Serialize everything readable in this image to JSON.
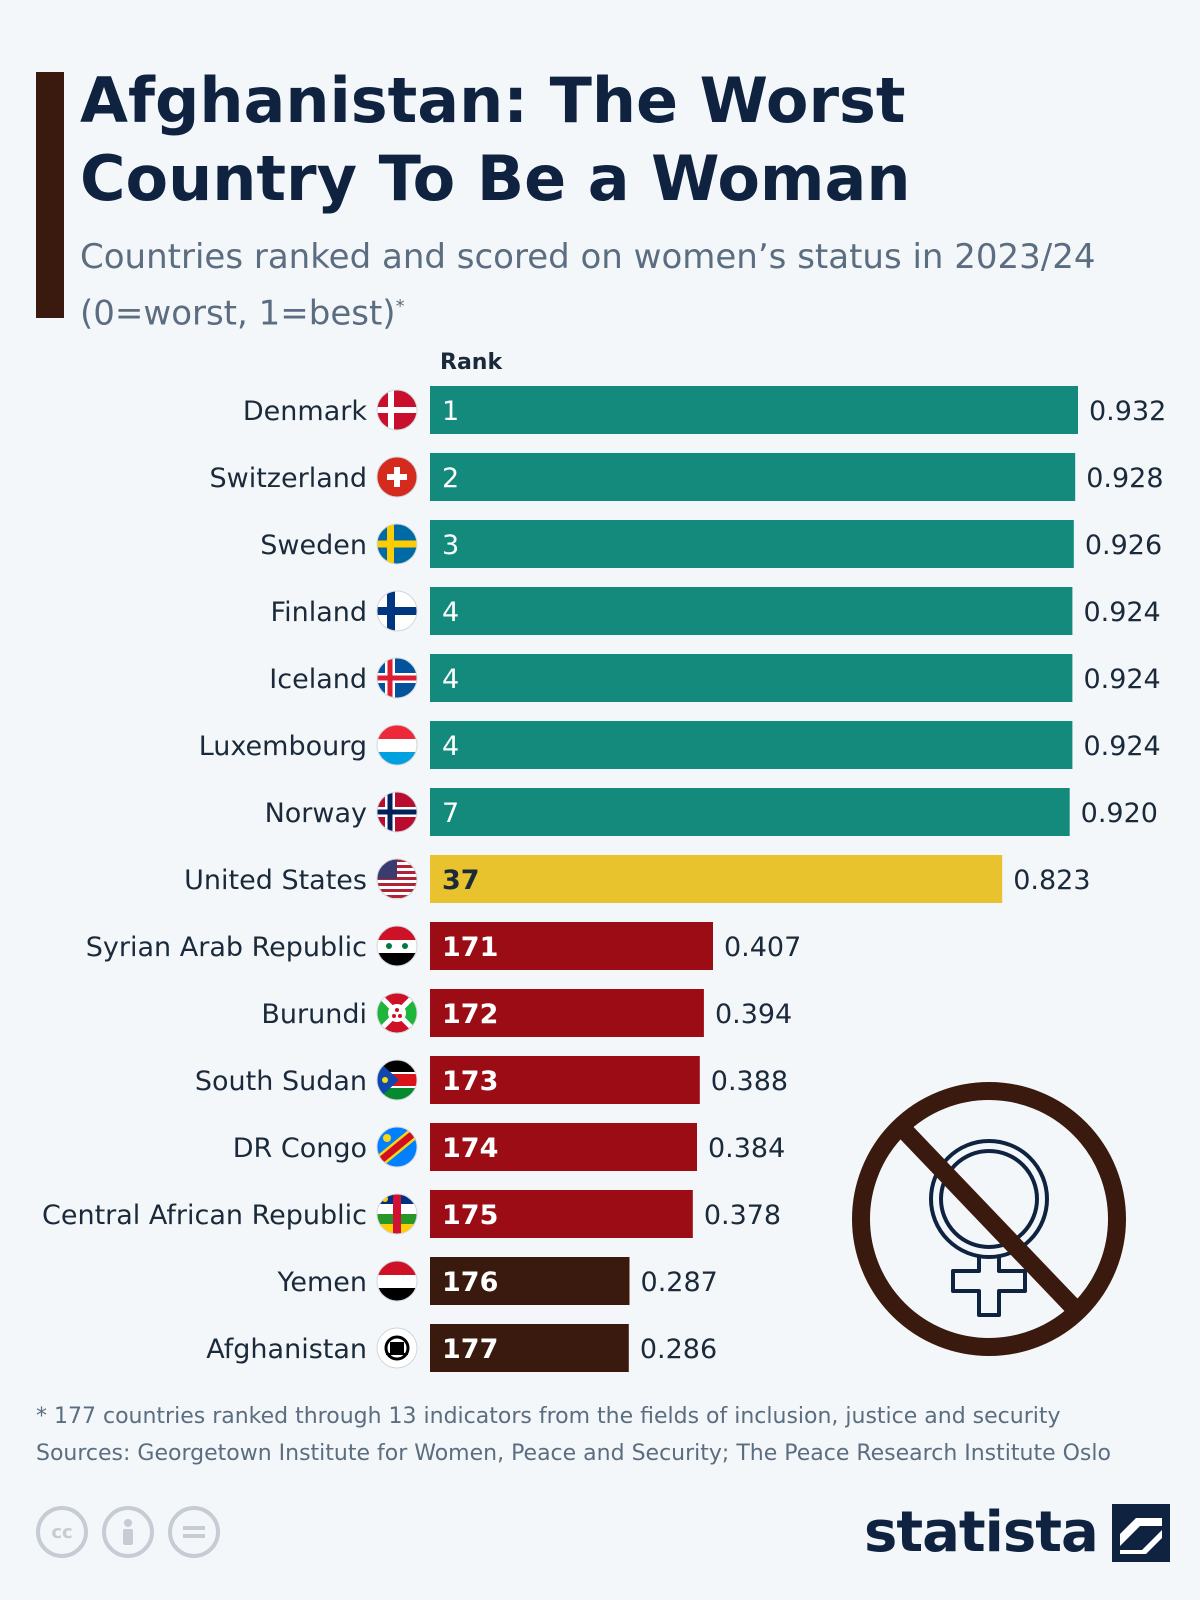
{
  "header": {
    "title": "Afghanistan: The Worst Country To Be a Woman",
    "subtitle": "Countries ranked and scored on women’s status in 2023/24 (0=worst, 1=best)",
    "subtitle_marker": "*"
  },
  "chart_data": {
    "type": "bar",
    "orientation": "horizontal",
    "title": "Afghanistan: The Worst Country To Be a Woman",
    "subtitle": "Countries ranked and scored on women’s status in 2023/24 (0=worst, 1=best)",
    "rank_header": "Rank",
    "xlim": [
      0,
      0.932
    ],
    "grid": false,
    "categories": [
      "Denmark",
      "Switzerland",
      "Sweden",
      "Finland",
      "Iceland",
      "Luxembourg",
      "Norway",
      "United States",
      "Syrian Arab Republic",
      "Burundi",
      "South Sudan",
      "DR Congo",
      "Central African Republic",
      "Yemen",
      "Afghanistan"
    ],
    "ranks": [
      "1",
      "2",
      "3",
      "4",
      "4",
      "4",
      "7",
      "37",
      "171",
      "172",
      "173",
      "174",
      "175",
      "176",
      "177"
    ],
    "values": [
      0.932,
      0.928,
      0.926,
      0.924,
      0.924,
      0.924,
      0.92,
      0.823,
      0.407,
      0.394,
      0.388,
      0.384,
      0.378,
      0.287,
      0.286
    ],
    "value_labels": [
      "0.932",
      "0.928",
      "0.926",
      "0.924",
      "0.924",
      "0.924",
      "0.920",
      "0.823",
      "0.407",
      "0.394",
      "0.388",
      "0.384",
      "0.378",
      "0.287",
      "0.286"
    ],
    "groups": [
      "top",
      "top",
      "top",
      "top",
      "top",
      "top",
      "top",
      "us",
      "bottom",
      "bottom",
      "bottom",
      "bottom",
      "bottom",
      "worst",
      "worst"
    ],
    "colors": {
      "top": "#138a7c",
      "us": "#e8c32e",
      "bottom": "#9b0c14",
      "worst": "#3a1a0e"
    },
    "rank_text_colors": {
      "top": "#ffffff",
      "us": "#1b2a3a",
      "bottom": "#ffffff",
      "worst": "#ffffff"
    }
  },
  "icons": {
    "flags": [
      "denmark-flag-icon",
      "switzerland-flag-icon",
      "sweden-flag-icon",
      "finland-flag-icon",
      "iceland-flag-icon",
      "luxembourg-flag-icon",
      "norway-flag-icon",
      "united-states-flag-icon",
      "syria-flag-icon",
      "burundi-flag-icon",
      "south-sudan-flag-icon",
      "dr-congo-flag-icon",
      "central-african-republic-flag-icon",
      "yemen-flag-icon",
      "afghanistan-flag-icon"
    ],
    "illustration": "no-women-symbol-icon"
  },
  "footer": {
    "note": "* 177 countries ranked through 13 indicators from the fields of inclusion, justice and security",
    "sources": "Sources: Georgetown Institute for Women, Peace and Security; The Peace Research Institute Oslo",
    "brand": "statista",
    "license_icons": [
      "cc",
      "by",
      "nd"
    ]
  }
}
